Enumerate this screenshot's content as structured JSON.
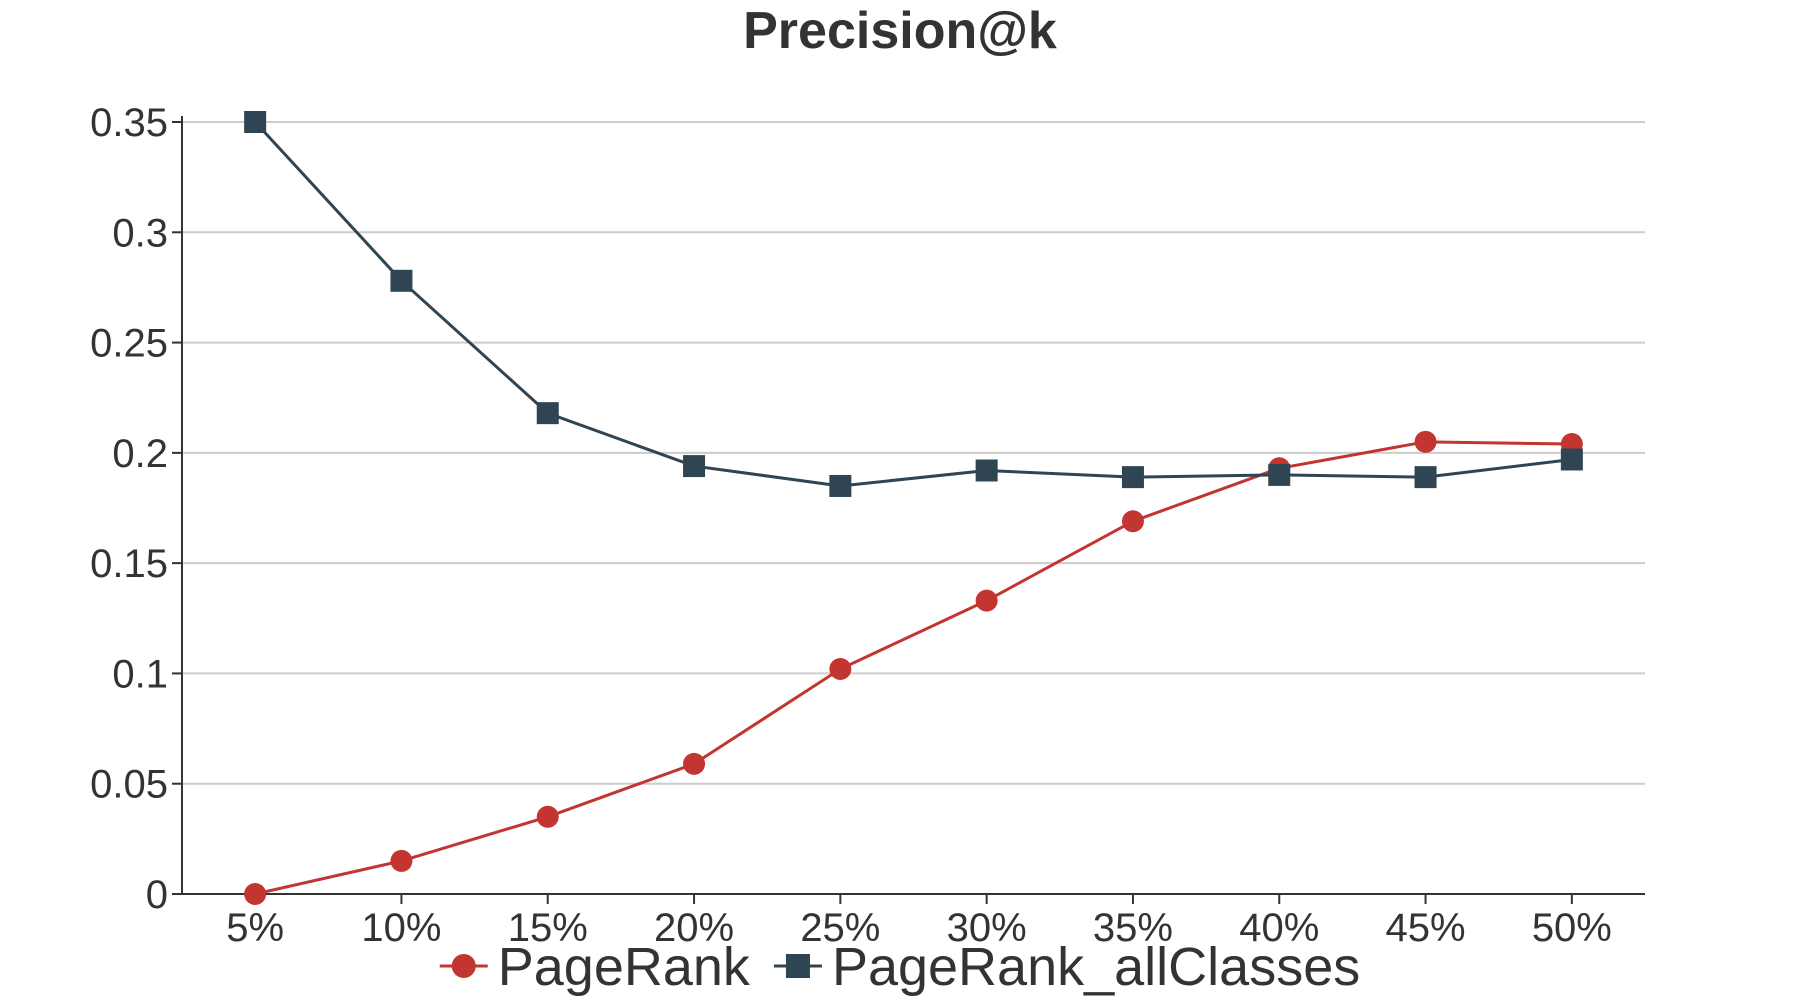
{
  "chart_data": {
    "type": "line",
    "title": "Precision@k",
    "xlabel": "",
    "ylabel": "",
    "categories": [
      "5%",
      "10%",
      "15%",
      "20%",
      "25%",
      "30%",
      "35%",
      "40%",
      "45%",
      "50%"
    ],
    "ylim": [
      0,
      0.35
    ],
    "yticks": [
      "0",
      "0.05",
      "0.1",
      "0.15",
      "0.2",
      "0.25",
      "0.3",
      "0.35"
    ],
    "ytick_values": [
      0,
      0.05,
      0.1,
      0.15,
      0.2,
      0.25,
      0.3,
      0.35
    ],
    "grid": true,
    "legend_position": "bottom",
    "series": [
      {
        "name": "PageRank",
        "color": "#c23531",
        "marker": "circle",
        "values": [
          0.0,
          0.015,
          0.035,
          0.059,
          0.102,
          0.133,
          0.169,
          0.193,
          0.205,
          0.204
        ]
      },
      {
        "name": "PageRank_allClasses",
        "color": "#2f4554",
        "marker": "square",
        "values": [
          0.35,
          0.278,
          0.218,
          0.194,
          0.185,
          0.192,
          0.189,
          0.19,
          0.189,
          0.197
        ]
      }
    ]
  }
}
